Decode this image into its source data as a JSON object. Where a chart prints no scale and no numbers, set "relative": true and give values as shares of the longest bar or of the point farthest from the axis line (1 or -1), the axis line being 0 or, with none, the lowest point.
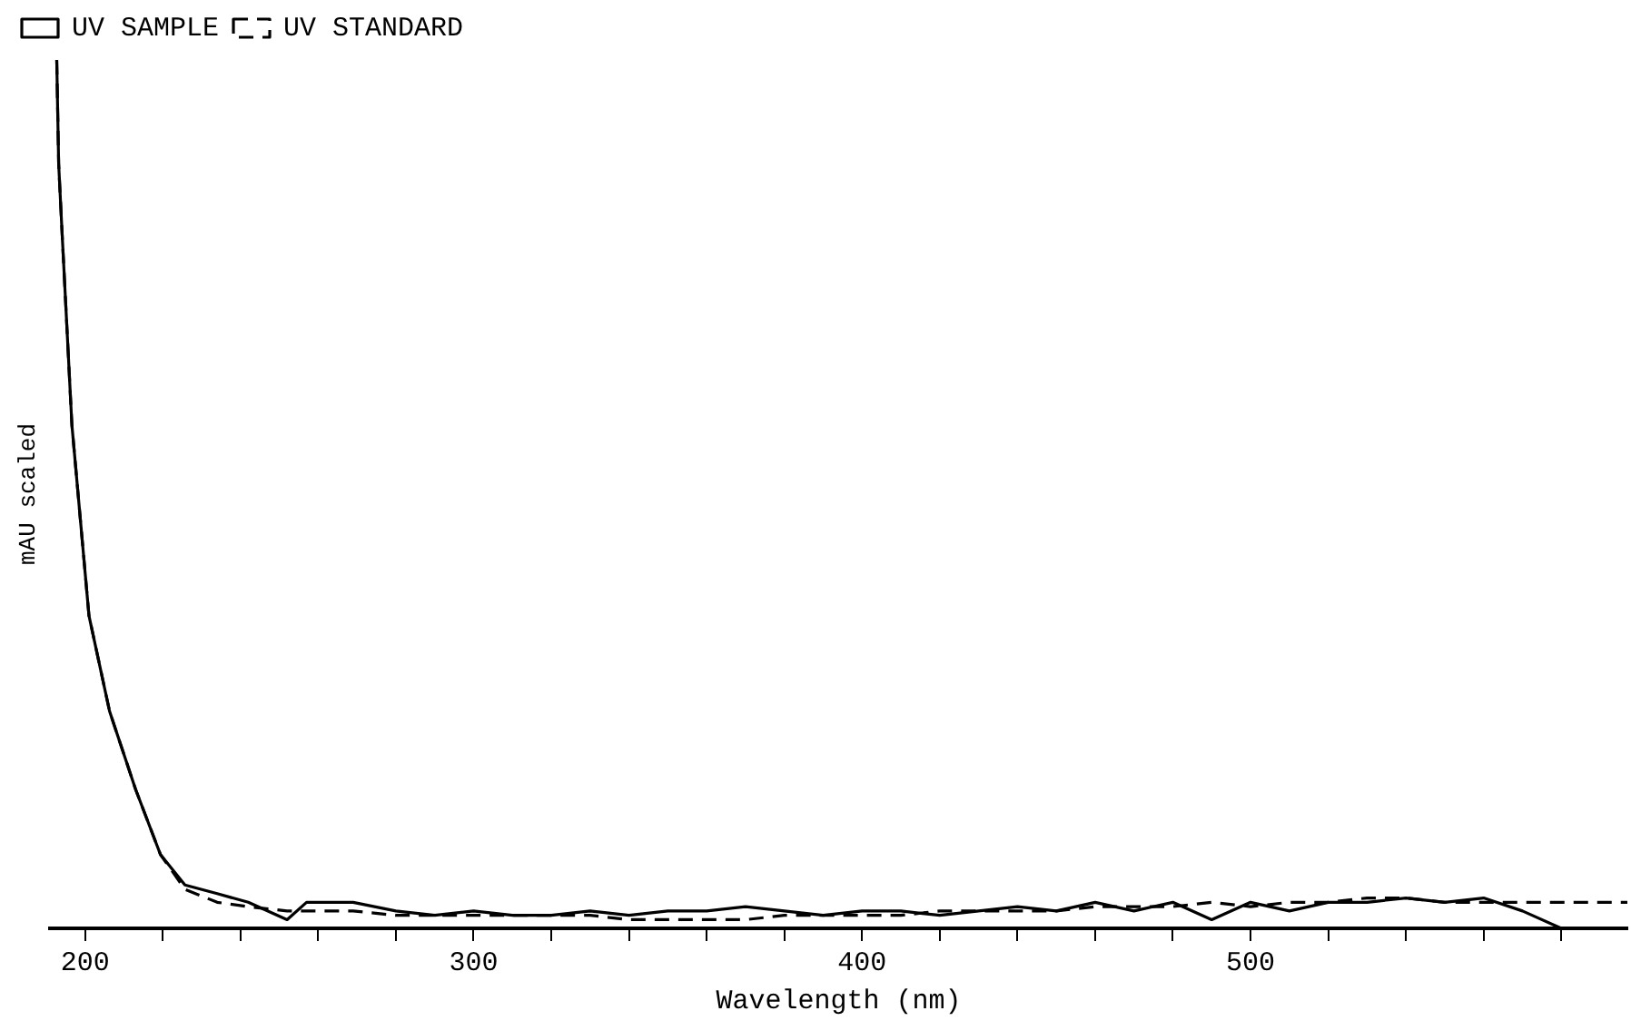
{
  "chart_data": {
    "type": "line",
    "xlabel": "Wavelength (nm)",
    "ylabel": "mAU scaled",
    "relative": true,
    "legend": "top left",
    "marker": "none",
    "x": [
      192.7,
      193.2,
      194.2,
      196.6,
      201,
      206.3,
      213,
      219.4,
      225.7,
      234,
      242,
      252,
      257,
      269,
      280,
      290,
      300,
      310,
      320,
      330,
      340,
      350,
      360,
      370,
      380,
      390,
      400,
      410,
      420,
      430,
      440,
      450,
      460,
      470,
      480,
      490,
      500,
      510,
      520,
      530,
      540,
      550,
      560,
      570,
      580,
      590,
      597
    ],
    "xlim": [
      191,
      597
    ],
    "xticks": [
      200,
      {
        "value": 220,
        "label": null
      },
      {
        "value": 240,
        "label": null
      },
      {
        "value": 260,
        "label": null
      },
      {
        "value": 280,
        "label": null
      },
      300,
      {
        "value": 320,
        "label": null
      },
      {
        "value": 340,
        "label": null
      },
      {
        "value": 360,
        "label": null
      },
      {
        "value": 380,
        "label": null
      },
      400,
      {
        "value": 420,
        "label": null
      },
      {
        "value": 440,
        "label": null
      },
      {
        "value": 460,
        "label": null
      },
      {
        "value": 480,
        "label": null
      },
      500,
      {
        "value": 520,
        "label": null
      },
      {
        "value": 540,
        "label": null
      },
      {
        "value": 560,
        "label": null
      },
      {
        "value": 580,
        "label": null
      }
    ],
    "series": [
      {
        "name": "UV SAMPLE",
        "color": "#000000",
        "line_style": "solid",
        "values": [
          1,
          0.88,
          0.79,
          0.58,
          0.36,
          0.25,
          0.16,
          0.085,
          0.05,
          0.04,
          0.03,
          0.01,
          0.03,
          0.03,
          0.02,
          0.015,
          0.02,
          0.015,
          0.015,
          0.02,
          0.015,
          0.02,
          0.02,
          0.025,
          0.02,
          0.015,
          0.02,
          0.02,
          0.015,
          0.02,
          0.025,
          0.02,
          0.03,
          0.02,
          0.03,
          0.01,
          0.03,
          0.02,
          0.03,
          0.03,
          0.035,
          0.03,
          0.035,
          0.02,
          0,
          0,
          0
        ]
      },
      {
        "name": "UV STANDARD",
        "color": "#000000",
        "line_style": "dashed",
        "values": [
          1,
          0.88,
          0.79,
          0.58,
          0.36,
          0.25,
          0.16,
          0.085,
          0.045,
          0.03,
          0.025,
          0.02,
          0.02,
          0.02,
          0.015,
          0.015,
          0.015,
          0.015,
          0.015,
          0.015,
          0.01,
          0.01,
          0.01,
          0.01,
          0.015,
          0.015,
          0.015,
          0.015,
          0.02,
          0.02,
          0.02,
          0.02,
          0.025,
          0.025,
          0.025,
          0.03,
          0.025,
          0.03,
          0.03,
          0.035,
          0.035,
          0.03,
          0.03,
          0.03,
          0.03,
          0.03,
          0.03
        ]
      }
    ]
  }
}
